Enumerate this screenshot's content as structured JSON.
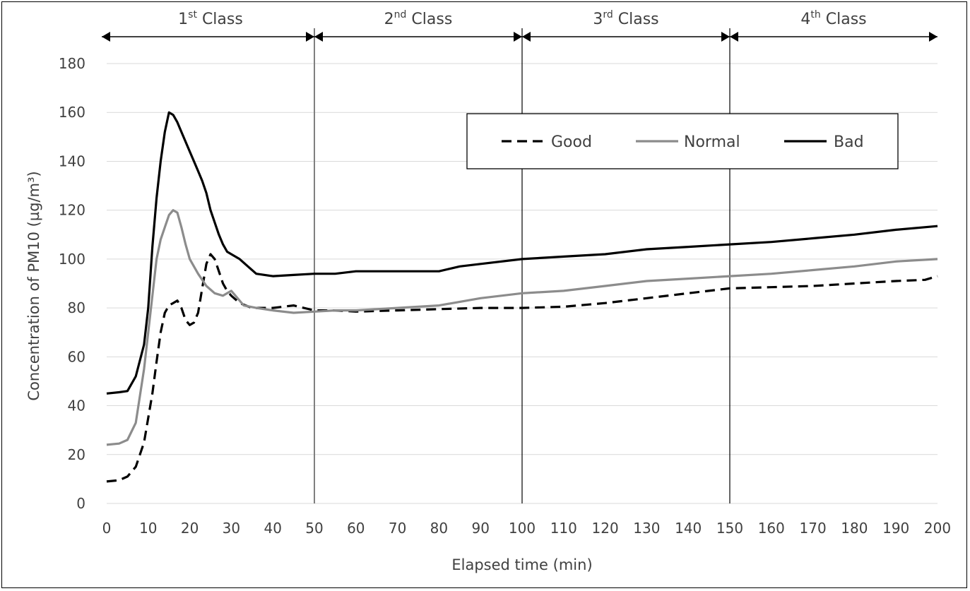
{
  "chart_data": {
    "type": "line",
    "xlabel": "Elapsed time (min)",
    "ylabel": "Concentration of PM10 (µg/m³)",
    "xlim": [
      0,
      200
    ],
    "ylim": [
      0,
      180
    ],
    "x_ticks": [
      0,
      10,
      20,
      30,
      40,
      50,
      60,
      70,
      80,
      90,
      100,
      110,
      120,
      130,
      140,
      150,
      160,
      170,
      180,
      190,
      200
    ],
    "y_ticks": [
      0,
      20,
      40,
      60,
      80,
      100,
      120,
      140,
      160,
      180
    ],
    "grid": "horizontal",
    "legend_position": "top-right",
    "class_boundaries": [
      50,
      100,
      150
    ],
    "classes": [
      {
        "label": "1",
        "sup": "st",
        "suffix": " Class",
        "start": 0,
        "end": 50
      },
      {
        "label": "2",
        "sup": "nd",
        "suffix": " Class",
        "start": 50,
        "end": 100
      },
      {
        "label": "3",
        "sup": "rd",
        "suffix": " Class",
        "start": 100,
        "end": 150
      },
      {
        "label": "4",
        "sup": "th",
        "suffix": " Class",
        "start": 150,
        "end": 200
      }
    ],
    "series": [
      {
        "name": "Good",
        "color": "#000000",
        "style": "dashed",
        "points": [
          [
            0,
            9
          ],
          [
            3,
            9.5
          ],
          [
            5,
            11
          ],
          [
            7,
            15
          ],
          [
            9,
            25
          ],
          [
            11,
            45
          ],
          [
            12,
            58
          ],
          [
            13,
            70
          ],
          [
            14,
            78
          ],
          [
            15,
            81
          ],
          [
            16,
            82
          ],
          [
            17,
            83
          ],
          [
            18,
            80
          ],
          [
            19,
            75
          ],
          [
            20,
            73
          ],
          [
            21,
            74
          ],
          [
            22,
            78
          ],
          [
            23,
            88
          ],
          [
            24,
            98
          ],
          [
            25,
            102
          ],
          [
            26,
            100
          ],
          [
            27,
            95
          ],
          [
            28,
            90
          ],
          [
            29,
            87
          ],
          [
            30,
            85
          ],
          [
            32,
            82
          ],
          [
            35,
            80
          ],
          [
            40,
            80
          ],
          [
            45,
            81
          ],
          [
            50,
            79
          ],
          [
            55,
            79
          ],
          [
            60,
            78.5
          ],
          [
            70,
            79
          ],
          [
            80,
            79.5
          ],
          [
            90,
            80
          ],
          [
            100,
            80
          ],
          [
            110,
            80.5
          ],
          [
            120,
            82
          ],
          [
            130,
            84
          ],
          [
            140,
            86
          ],
          [
            150,
            88
          ],
          [
            160,
            88.5
          ],
          [
            170,
            89
          ],
          [
            180,
            90
          ],
          [
            190,
            91
          ],
          [
            197,
            91.5
          ],
          [
            200,
            93
          ]
        ]
      },
      {
        "name": "Normal",
        "color": "#8c8c8c",
        "style": "solid",
        "points": [
          [
            0,
            24
          ],
          [
            3,
            24.5
          ],
          [
            5,
            26
          ],
          [
            7,
            33
          ],
          [
            9,
            55
          ],
          [
            11,
            85
          ],
          [
            12,
            100
          ],
          [
            13,
            108
          ],
          [
            14,
            113
          ],
          [
            15,
            118
          ],
          [
            16,
            120
          ],
          [
            17,
            119
          ],
          [
            18,
            113
          ],
          [
            19,
            106
          ],
          [
            20,
            100
          ],
          [
            22,
            94
          ],
          [
            24,
            89
          ],
          [
            26,
            86
          ],
          [
            28,
            85
          ],
          [
            29,
            86
          ],
          [
            30,
            87
          ],
          [
            31,
            85
          ],
          [
            33,
            81
          ],
          [
            36,
            80
          ],
          [
            40,
            79
          ],
          [
            45,
            78
          ],
          [
            50,
            78.5
          ],
          [
            55,
            79
          ],
          [
            60,
            79
          ],
          [
            70,
            80
          ],
          [
            80,
            81
          ],
          [
            90,
            84
          ],
          [
            100,
            86
          ],
          [
            110,
            87
          ],
          [
            120,
            89
          ],
          [
            130,
            91
          ],
          [
            140,
            92
          ],
          [
            150,
            93
          ],
          [
            160,
            94
          ],
          [
            170,
            95.5
          ],
          [
            180,
            97
          ],
          [
            190,
            99
          ],
          [
            200,
            100
          ]
        ]
      },
      {
        "name": "Bad",
        "color": "#000000",
        "style": "solid",
        "points": [
          [
            0,
            45
          ],
          [
            3,
            45.5
          ],
          [
            5,
            46
          ],
          [
            7,
            52
          ],
          [
            9,
            65
          ],
          [
            10,
            80
          ],
          [
            11,
            105
          ],
          [
            12,
            125
          ],
          [
            13,
            140
          ],
          [
            14,
            152
          ],
          [
            15,
            160
          ],
          [
            16,
            159
          ],
          [
            17,
            156
          ],
          [
            18,
            152
          ],
          [
            19,
            148
          ],
          [
            20,
            144
          ],
          [
            21,
            140
          ],
          [
            22,
            136
          ],
          [
            23,
            132
          ],
          [
            24,
            127
          ],
          [
            25,
            120
          ],
          [
            26,
            115
          ],
          [
            27,
            110
          ],
          [
            28,
            106
          ],
          [
            29,
            103
          ],
          [
            30,
            102
          ],
          [
            32,
            100
          ],
          [
            34,
            97
          ],
          [
            36,
            94
          ],
          [
            40,
            93
          ],
          [
            45,
            93.5
          ],
          [
            50,
            94
          ],
          [
            55,
            94
          ],
          [
            60,
            95
          ],
          [
            70,
            95
          ],
          [
            80,
            95
          ],
          [
            85,
            97
          ],
          [
            90,
            98
          ],
          [
            100,
            100
          ],
          [
            110,
            101
          ],
          [
            120,
            102
          ],
          [
            130,
            104
          ],
          [
            140,
            105
          ],
          [
            150,
            106
          ],
          [
            160,
            107
          ],
          [
            170,
            108.5
          ],
          [
            180,
            110
          ],
          [
            190,
            112
          ],
          [
            200,
            113.5
          ]
        ]
      }
    ]
  }
}
